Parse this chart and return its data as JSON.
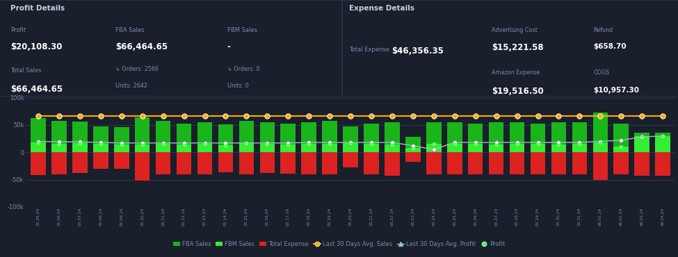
{
  "bg_color": "#1a1f2c",
  "panel_color": "#1e2435",
  "border_color": "#2d3652",
  "text_color": "#c8d0e0",
  "dim_text": "#7a8aaa",
  "highlight_color": "#ffffff",
  "green_color": "#22dd22",
  "red_color": "#ee3333",
  "orange_color": "#ffaa00",
  "white_color": "#ffffff",
  "teal_color": "#aaddaa",
  "profit_details_title": "Profit Details",
  "expense_details_title": "Expense Details",
  "profit_label": "Profit",
  "profit_value": "$20,108.30",
  "total_sales_label": "Total Sales",
  "total_sales_value": "$66,464.65",
  "fba_sales_label": "FBA Sales",
  "fba_sales_value": "$66,464.65",
  "fba_orders": "Orders: 2566",
  "fba_units": "Units: 2642",
  "fbm_sales_label": "FBM Sales",
  "fbm_sales_value": "-",
  "fbm_orders": "Orders: 0",
  "fbm_units": "Units: 0",
  "total_expense_label": "Total Expense",
  "total_expense_value": "$46,356.35",
  "adv_cost_label": "Advertising Cost",
  "adv_cost_value": "$15,221.58",
  "amazon_expense_label": "Amazon Expense",
  "amazon_expense_value": "$19,516.50",
  "refund_label": "Refund",
  "refund_value": "$658.70",
  "cogs_label": "COGS",
  "cogs_value": "$10,957.30",
  "dates": [
    "05.05.24",
    "05.06.24",
    "05.07.24",
    "05.08.24",
    "05.09.24",
    "05.10.24",
    "05.11.24",
    "05.12.24",
    "05.13.24",
    "05.14.24",
    "05.15.24",
    "05.16.24",
    "05.17.24",
    "05.18.24",
    "05.19.24",
    "05.20.24",
    "05.21.24",
    "05.22.24",
    "05.23.24",
    "05.24.24",
    "05.25.24",
    "05.26.24",
    "05.27.24",
    "05.28.24",
    "05.29.24",
    "05.30.24",
    "05.31.24",
    "06.01.24",
    "06.02.24",
    "06.03.24",
    "06.04.24"
  ],
  "fba_sales_bars": [
    62000,
    57000,
    56000,
    47000,
    46000,
    64000,
    57000,
    52000,
    55000,
    51000,
    58000,
    55000,
    52000,
    55000,
    57000,
    47000,
    52000,
    55000,
    28000,
    55000,
    55000,
    52000,
    55000,
    55000,
    52000,
    55000,
    55000,
    73000,
    52000,
    36000,
    36000
  ],
  "total_expense_bars": [
    -42000,
    -40000,
    -38000,
    -30000,
    -30000,
    -52000,
    -40000,
    -40000,
    -40000,
    -37000,
    -40000,
    -38000,
    -39000,
    -40000,
    -40000,
    -28000,
    -40000,
    -43000,
    -17000,
    -40000,
    -40000,
    -40000,
    -40000,
    -40000,
    -40000,
    -40000,
    -40000,
    -50000,
    -40000,
    -43000,
    -43000
  ],
  "profit_bars": [
    18000,
    16000,
    17000,
    15000,
    14000,
    14000,
    15000,
    14000,
    16000,
    13000,
    17000,
    15000,
    14000,
    16000,
    16000,
    17000,
    15000,
    14000,
    8000,
    15000,
    15000,
    15000,
    14000,
    15000,
    15000,
    14000,
    15000,
    18000,
    10000,
    30000,
    30000
  ],
  "avg_sales_line": [
    66000,
    66000,
    66000,
    66000,
    66000,
    66000,
    66000,
    66000,
    66000,
    66000,
    66000,
    66000,
    66000,
    66000,
    66000,
    66000,
    66000,
    66000,
    66000,
    66000,
    66000,
    66000,
    66000,
    66000,
    66000,
    66000,
    66000,
    66000,
    66000,
    66000,
    66000
  ],
  "avg_profit_line": [
    20000,
    19000,
    19000,
    18000,
    17000,
    17000,
    17000,
    17000,
    17000,
    17000,
    17000,
    17000,
    17000,
    18000,
    18000,
    18000,
    18000,
    18000,
    12000,
    5000,
    18000,
    18000,
    18000,
    18000,
    18000,
    18000,
    18000,
    20000,
    22000,
    28000,
    30000
  ],
  "ylim": [
    -100000,
    100000
  ],
  "yticks": [
    -100000,
    -50000,
    0,
    50000,
    100000
  ],
  "ytick_labels": [
    "-100k",
    "-50k",
    "0",
    "50k",
    "100k"
  ]
}
